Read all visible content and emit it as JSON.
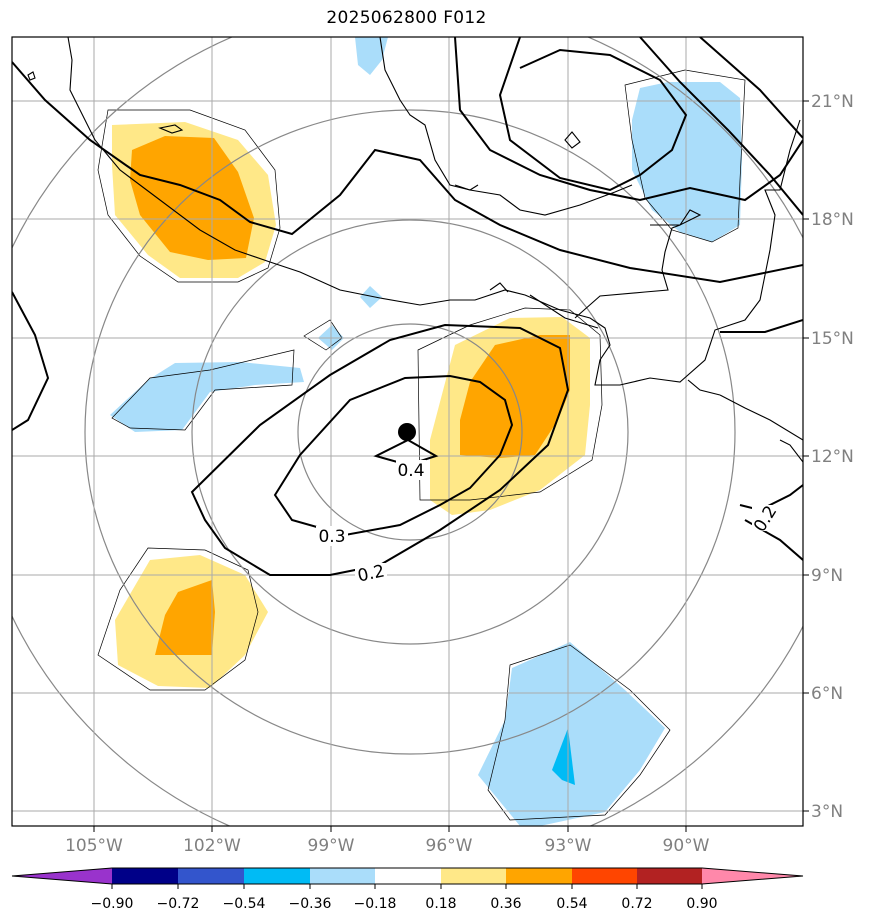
{
  "title": "2025062800 F012",
  "longitude_labels": [
    "105°W",
    "102°W",
    "99°W",
    "96°W",
    "93°W",
    "90°W"
  ],
  "latitude_labels": [
    "21°N",
    "18°N",
    "15°N",
    "12°N",
    "9°N",
    "6°N",
    "3°N"
  ],
  "contour_labels": [
    "0.4",
    "0.3",
    "0.2",
    "0.2"
  ],
  "colorbar": {
    "ticks": [
      "−0.90",
      "−0.72",
      "−0.54",
      "−0.36",
      "−0.18",
      "0.18",
      "0.36",
      "0.54",
      "0.72",
      "0.90"
    ],
    "colors": [
      "#9933cc",
      "#000088",
      "#3355cc",
      "#00bbf5",
      "#aaddfa",
      "#ffffff",
      "#ffe888",
      "#ffa500",
      "#ff4500",
      "#b22222",
      "#ff88aa"
    ]
  },
  "center_marker": "filled-circle"
}
